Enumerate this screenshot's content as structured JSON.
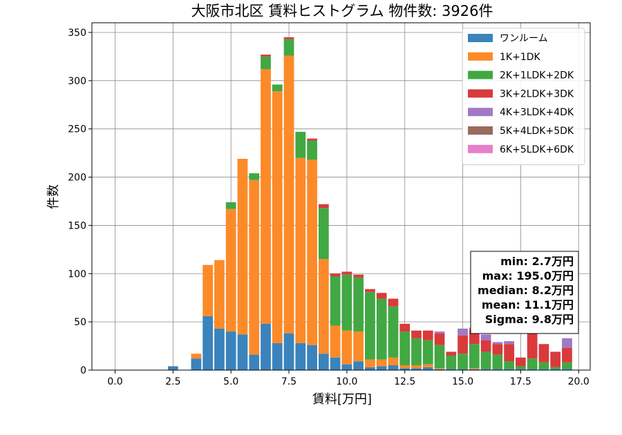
{
  "chart_data": {
    "type": "bar",
    "title": "大阪市北区 賃料ヒストグラム 物件数: 3926件",
    "xlabel": "賃料[万円]",
    "ylabel": "件数",
    "xlim": [
      -1.0,
      20.5
    ],
    "ylim": [
      0,
      360
    ],
    "xticks": [
      "0.0",
      "2.5",
      "5.0",
      "7.5",
      "10.0",
      "12.5",
      "15.0",
      "17.5",
      "20.0"
    ],
    "yticks": [
      "0",
      "50",
      "100",
      "150",
      "200",
      "250",
      "300",
      "350"
    ],
    "grid": true,
    "stacked": true,
    "legend_position": "top-right",
    "bin_width": 0.5,
    "x": [
      2.5,
      3.5,
      4.0,
      4.5,
      5.0,
      5.5,
      6.0,
      6.5,
      7.0,
      7.5,
      8.0,
      8.5,
      9.0,
      9.5,
      10.0,
      10.5,
      11.0,
      11.5,
      12.0,
      12.5,
      13.0,
      13.5,
      14.0,
      14.5,
      15.0,
      15.5,
      16.0,
      16.5,
      17.0,
      17.5,
      18.0,
      18.5,
      19.0,
      19.5
    ],
    "series": [
      {
        "name": "ワンルーム",
        "color": "#3a83bc",
        "values": [
          4,
          12,
          56,
          43,
          40,
          37,
          16,
          48,
          28,
          38,
          28,
          26,
          17,
          13,
          6,
          9,
          3,
          4,
          5,
          2,
          2,
          3,
          1,
          1,
          1,
          1,
          1,
          1,
          1,
          1,
          1,
          1,
          1,
          1
        ]
      },
      {
        "name": "1K+1DK",
        "color": "#fc8a29",
        "values": [
          0,
          5,
          53,
          71,
          127,
          182,
          181,
          264,
          261,
          288,
          192,
          192,
          98,
          33,
          35,
          31,
          8,
          7,
          8,
          3,
          3,
          3,
          1,
          0,
          0,
          1,
          0,
          0,
          0,
          0,
          0,
          0,
          0,
          0
        ]
      },
      {
        "name": "2K+1LDK+2DK",
        "color": "#41a843",
        "values": [
          0,
          0,
          0,
          0,
          7,
          0,
          7,
          13,
          7,
          17,
          27,
          20,
          53,
          51,
          58,
          56,
          70,
          63,
          53,
          35,
          28,
          25,
          24,
          14,
          16,
          25,
          18,
          15,
          8,
          3,
          11,
          7,
          2,
          7
        ]
      },
      {
        "name": "3K+2LDK+3DK",
        "color": "#d93a3c",
        "values": [
          0,
          0,
          0,
          0,
          0,
          0,
          0,
          2,
          0,
          2,
          0,
          2,
          4,
          3,
          3,
          3,
          3,
          6,
          8,
          8,
          8,
          10,
          12,
          4,
          19,
          15,
          12,
          11,
          18,
          9,
          28,
          19,
          16,
          15
        ]
      },
      {
        "name": "4K+3LDK+4DK",
        "color": "#a178c4",
        "values": [
          0,
          0,
          0,
          0,
          0,
          0,
          0,
          0,
          0,
          0,
          0,
          0,
          0,
          0,
          0,
          0,
          0,
          0,
          0,
          0,
          0,
          0,
          2,
          0,
          7,
          2,
          6,
          2,
          3,
          0,
          0,
          0,
          0,
          10
        ]
      },
      {
        "name": "5K+4LDK+5DK",
        "color": "#9a6a5c",
        "values": [
          0,
          0,
          0,
          0,
          0,
          0,
          0,
          0,
          0,
          0,
          0,
          0,
          0,
          0,
          0,
          0,
          0,
          0,
          0,
          0,
          0,
          0,
          0,
          0,
          0,
          0,
          0,
          0,
          0,
          0,
          0,
          0,
          0,
          0
        ]
      },
      {
        "name": "6K+5LDK+6DK",
        "color": "#e680c8",
        "values": [
          0,
          0,
          0,
          0,
          0,
          0,
          0,
          0,
          0,
          0,
          0,
          0,
          0,
          0,
          0,
          0,
          0,
          0,
          0,
          0,
          0,
          0,
          0,
          0,
          0,
          0,
          0,
          0,
          0,
          0,
          0,
          0,
          0,
          0
        ]
      }
    ],
    "stats": [
      "min: 2.7万円",
      "max: 195.0万円",
      "median: 8.2万円",
      "mean: 11.1万円",
      "Sigma: 9.8万円"
    ]
  }
}
